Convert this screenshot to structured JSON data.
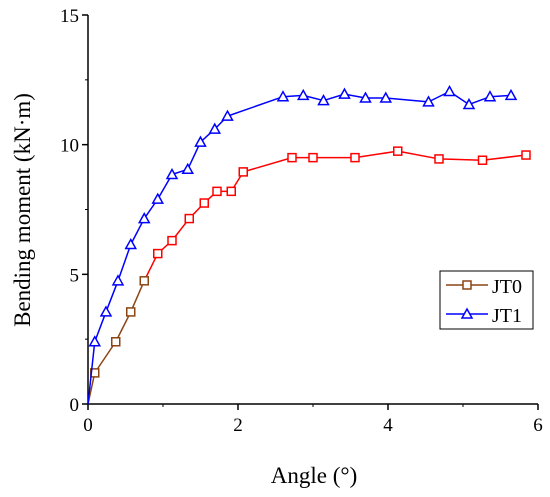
{
  "chart_data": {
    "type": "line",
    "title": "",
    "xlabel": "Angle (°)",
    "ylabel": "Bending moment (kN·m)",
    "xlim": [
      0,
      6
    ],
    "ylim": [
      0,
      15
    ],
    "x_ticks": [
      0,
      2,
      4,
      6
    ],
    "y_ticks": [
      0,
      5,
      10,
      15
    ],
    "x_tick_labels": [
      "0",
      "2",
      "4",
      "6"
    ],
    "y_tick_labels": [
      "0",
      "5",
      "10",
      "15"
    ],
    "grid": false,
    "legend_position": "right-middle",
    "series": [
      {
        "name": "JT0",
        "marker": "square",
        "line_color": "#8B4513",
        "line_color_late": "#ff0000",
        "marker_color": "#8B4513",
        "marker_color_late": "#ff0000",
        "points": [
          [
            0.0,
            0.0
          ],
          [
            0.09,
            1.2
          ],
          [
            0.37,
            2.4
          ],
          [
            0.57,
            3.55
          ],
          [
            0.75,
            4.75
          ],
          [
            0.93,
            5.8
          ],
          [
            1.12,
            6.3
          ],
          [
            1.35,
            7.15
          ],
          [
            1.55,
            7.75
          ],
          [
            1.72,
            8.2
          ],
          [
            1.91,
            8.2
          ],
          [
            2.07,
            8.95
          ],
          [
            2.72,
            9.5
          ],
          [
            3.0,
            9.5
          ],
          [
            3.56,
            9.5
          ],
          [
            4.13,
            9.75
          ],
          [
            4.68,
            9.45
          ],
          [
            5.26,
            9.4
          ],
          [
            5.84,
            9.6
          ]
        ]
      },
      {
        "name": "JT1",
        "marker": "triangle",
        "line_color": "#0000ff",
        "marker_color": "#0000ff",
        "points": [
          [
            0.0,
            0.0
          ],
          [
            0.09,
            2.4
          ],
          [
            0.24,
            3.55
          ],
          [
            0.4,
            4.75
          ],
          [
            0.57,
            6.15
          ],
          [
            0.75,
            7.15
          ],
          [
            0.93,
            7.9
          ],
          [
            1.12,
            8.85
          ],
          [
            1.33,
            9.05
          ],
          [
            1.5,
            10.1
          ],
          [
            1.69,
            10.6
          ],
          [
            1.86,
            11.1
          ],
          [
            2.6,
            11.85
          ],
          [
            2.87,
            11.9
          ],
          [
            3.14,
            11.7
          ],
          [
            3.42,
            11.95
          ],
          [
            3.7,
            11.8
          ],
          [
            3.97,
            11.8
          ],
          [
            4.54,
            11.65
          ],
          [
            4.82,
            12.05
          ],
          [
            5.08,
            11.55
          ],
          [
            5.36,
            11.85
          ],
          [
            5.64,
            11.9
          ]
        ]
      }
    ]
  }
}
